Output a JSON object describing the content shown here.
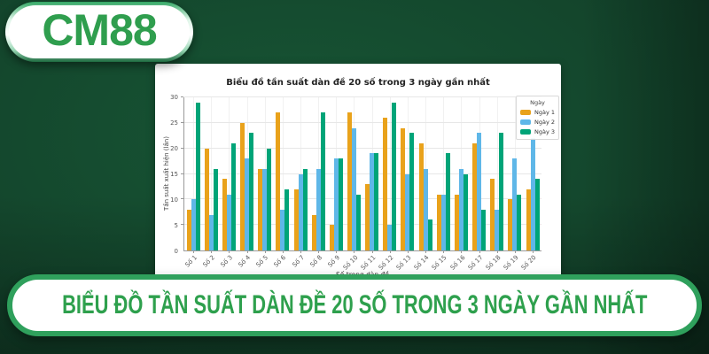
{
  "logo": {
    "text": "CM88"
  },
  "banner": {
    "text": "BIỂU ĐỒ TẦN SUẤT DÀN ĐỀ 20 SỐ TRONG 3 NGÀY GẦN NHẤT"
  },
  "colors": {
    "brand_green": "#2F9E4E",
    "background_green": "#123E28",
    "banner_border_green": "#2FA05C",
    "bar_orange": "#E9A21B",
    "bar_blue": "#5FB7E8",
    "bar_green": "#00A478"
  },
  "chart_data": {
    "type": "bar",
    "title": "Biểu đồ tần suất dàn đề 20 số trong 3 ngày gần nhất",
    "xlabel": "Số trong dàn đề",
    "ylabel": "Tần suất xuất hiện (lần)",
    "legend_title": "Ngày",
    "legend_position": "top-right",
    "grid": true,
    "ylim": [
      0,
      30
    ],
    "yticks": [
      0,
      5,
      10,
      15,
      20,
      25,
      30
    ],
    "categories": [
      "Số 1",
      "Số 2",
      "Số 3",
      "Số 4",
      "Số 5",
      "Số 6",
      "Số 7",
      "Số 8",
      "Số 9",
      "Số 10",
      "Số 11",
      "Số 12",
      "Số 13",
      "Số 14",
      "Số 15",
      "Số 16",
      "Số 17",
      "Số 18",
      "Số 19",
      "Số 20"
    ],
    "series": [
      {
        "name": "Ngày 1",
        "color": "#E9A21B",
        "values": [
          8,
          20,
          14,
          25,
          16,
          27,
          12,
          7,
          5,
          27,
          13,
          26,
          24,
          21,
          11,
          11,
          21,
          14,
          10,
          12
        ]
      },
      {
        "name": "Ngày 2",
        "color": "#5FB7E8",
        "values": [
          10,
          7,
          11,
          18,
          16,
          8,
          15,
          16,
          18,
          24,
          19,
          5,
          15,
          16,
          11,
          16,
          23,
          8,
          18,
          22
        ]
      },
      {
        "name": "Ngày 3",
        "color": "#00A478",
        "values": [
          29,
          16,
          21,
          23,
          20,
          12,
          16,
          27,
          18,
          11,
          19,
          29,
          23,
          6,
          19,
          15,
          8,
          23,
          11,
          14
        ]
      }
    ]
  }
}
